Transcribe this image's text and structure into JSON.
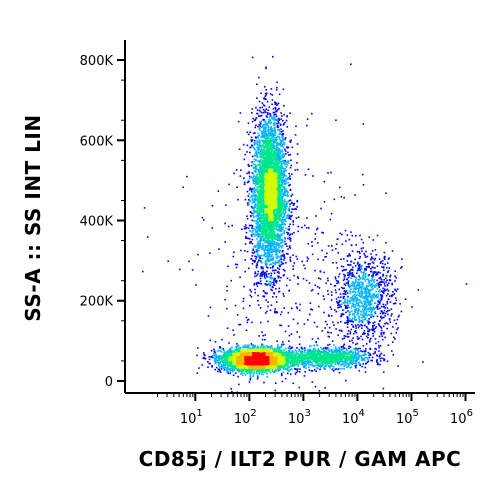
{
  "chart_data": {
    "type": "scatter",
    "plot_style": "flow-cytometry density dot plot (blue-green-yellow-red density colouring)",
    "xlabel": "CD85j / ILT2 PUR / GAM APC",
    "ylabel": "SS-A :: SS INT LIN",
    "x_scale": "log",
    "xlim": [
      0.5,
      1500000
    ],
    "ylim": [
      -30000,
      850000
    ],
    "grid": false,
    "legend": "none",
    "x_ticks": [
      {
        "value": 10,
        "base": "10",
        "exp": "1"
      },
      {
        "value": 100,
        "base": "10",
        "exp": "2"
      },
      {
        "value": 1000,
        "base": "10",
        "exp": "3"
      },
      {
        "value": 10000,
        "base": "10",
        "exp": "4"
      },
      {
        "value": 100000,
        "base": "10",
        "exp": "5"
      },
      {
        "value": 1000000,
        "base": "10",
        "exp": "6"
      }
    ],
    "y_ticks": [
      {
        "value": 0,
        "label": "0"
      },
      {
        "value": 200000,
        "label": "200K"
      },
      {
        "value": 400000,
        "label": "400K"
      },
      {
        "value": 600000,
        "label": "600K"
      },
      {
        "value": 800000,
        "label": "800K"
      }
    ],
    "density_colors": [
      "#0000ff",
      "#00b4ff",
      "#00e68c",
      "#d2ff00",
      "#ffb400",
      "#ff0000"
    ],
    "populations": [
      {
        "x_center": 230,
        "x_spread_log10": 0.16,
        "y_center": 470000,
        "y_spread": 95000,
        "count": 4200
      },
      {
        "x_center": 130,
        "x_spread_log10": 0.32,
        "y_center": 55000,
        "y_spread": 14000,
        "count": 3600
      },
      {
        "x_center": 2500,
        "x_spread_log10": 0.42,
        "y_center": 60000,
        "y_spread": 12000,
        "count": 1200
      },
      {
        "x_center": 13000,
        "x_spread_log10": 0.28,
        "y_center": 210000,
        "y_spread": 55000,
        "count": 1000
      },
      {
        "x_center": 600,
        "x_spread_log10": 0.9,
        "y_center": 230000,
        "y_spread": 170000,
        "count": 450
      }
    ]
  }
}
